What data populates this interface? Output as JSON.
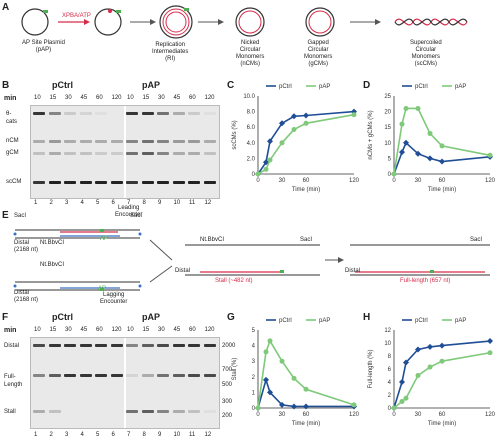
{
  "panels": {
    "A": "A",
    "B": "B",
    "C": "C",
    "D": "D",
    "E": "E",
    "F": "F",
    "G": "G",
    "H": "H"
  },
  "A": {
    "s1": [
      "AP Site Plasmid",
      "(pAP)"
    ],
    "arrow": "XPBA/ATP",
    "s3": [
      "Replication",
      "Intermediates",
      "(RI)"
    ],
    "s4": [
      "Nicked",
      "Circular",
      "Monomers",
      "(nCMs)"
    ],
    "s5": [
      "Gapped",
      "Circular",
      "Monomers",
      "(gCMs)"
    ],
    "s6": [
      "Supercoiled",
      "Circular",
      "Monomers",
      "(scCMs)"
    ]
  },
  "B": {
    "headers": [
      "pCtrl",
      "pAP"
    ],
    "min": "min",
    "times": [
      "10",
      "15",
      "30",
      "45",
      "60",
      "120",
      "10",
      "15",
      "30",
      "45",
      "60",
      "120"
    ],
    "lanes": [
      "1",
      "2",
      "3",
      "4",
      "5",
      "6",
      "7",
      "8",
      "9",
      "10",
      "11",
      "12"
    ],
    "rows": [
      "θ-",
      "cats",
      "nCM",
      "gCM",
      "scCM"
    ]
  },
  "C": {
    "ylabel": "scCMs (%)",
    "xlabel": "Time (min)",
    "yticks": [
      "0",
      "2.0",
      "4.0",
      "6.0",
      "8.0",
      "10.0"
    ],
    "xticks": [
      "0",
      "30",
      "60",
      "120"
    ],
    "legend": [
      "pCtrl",
      "pAP"
    ]
  },
  "D": {
    "ylabel": "nCMs + gCMs (%)",
    "xlabel": "Time (min)",
    "yticks": [
      "0",
      "5",
      "10",
      "15",
      "20",
      "25"
    ],
    "xticks": [
      "0",
      "30",
      "60",
      "120"
    ],
    "legend": [
      "pCtrl",
      "pAP"
    ]
  },
  "E": {
    "sac": "SacI",
    "nt": "Nt.BbvCI",
    "distal": "Distal",
    "len": "(2168 nt)",
    "lead": [
      "Leading",
      "Encounter"
    ],
    "lag": [
      "Lagging",
      "Encounter"
    ],
    "ap": "AP",
    "stall": "Stall (~482 nt)",
    "full": "Full-length (657 nt)"
  },
  "F": {
    "headers": [
      "pCtrl",
      "pAP"
    ],
    "min": "min",
    "times": [
      "10",
      "15",
      "30",
      "45",
      "60",
      "120",
      "10",
      "15",
      "30",
      "45",
      "60",
      "120"
    ],
    "lanes": [
      "1",
      "2",
      "3",
      "4",
      "5",
      "6",
      "7",
      "8",
      "9",
      "10",
      "11",
      "12"
    ],
    "rows": [
      "Distal",
      "Full-",
      "Length",
      "Stall"
    ],
    "markers": [
      "2000",
      "700",
      "500",
      "300",
      "200"
    ]
  },
  "G": {
    "ylabel": "Stall (%)",
    "xlabel": "Time (min)",
    "yticks": [
      "0",
      "1",
      "2",
      "3",
      "4",
      "5"
    ],
    "xticks": [
      "0",
      "30",
      "60",
      "120"
    ],
    "legend": [
      "pCtrl",
      "pAP"
    ]
  },
  "H": {
    "ylabel": "Full-length (%)",
    "xlabel": "Time (min)",
    "yticks": [
      "0",
      "2",
      "4",
      "6",
      "8",
      "10",
      "12"
    ],
    "xticks": [
      "0",
      "30",
      "60",
      "120"
    ],
    "legend": [
      "pCtrl",
      "pAP"
    ]
  },
  "colors": {
    "ctrl": "#1f4e96",
    "ap": "#7fc97a",
    "red": "#d62c4a",
    "blue": "#3a6fc4",
    "green": "#4caf50"
  },
  "chart_data": [
    {
      "type": "line",
      "panel": "C",
      "x": [
        0,
        10,
        15,
        30,
        45,
        60,
        120
      ],
      "xlim": [
        0,
        120
      ],
      "ylim": [
        0,
        10
      ],
      "series": [
        {
          "name": "pCtrl",
          "values": [
            0,
            1.5,
            4.2,
            6.5,
            7.4,
            7.5,
            8.0
          ]
        },
        {
          "name": "pAP",
          "values": [
            0,
            0.6,
            1.8,
            4.0,
            5.7,
            6.5,
            7.6
          ]
        }
      ]
    },
    {
      "type": "line",
      "panel": "D",
      "x": [
        0,
        10,
        15,
        30,
        45,
        60,
        120
      ],
      "xlim": [
        0,
        120
      ],
      "ylim": [
        0,
        25
      ],
      "series": [
        {
          "name": "pCtrl",
          "values": [
            0,
            7,
            10,
            6.5,
            5,
            4,
            5.5
          ]
        },
        {
          "name": "pAP",
          "values": [
            0,
            16,
            21,
            21,
            13,
            9,
            6
          ]
        }
      ]
    },
    {
      "type": "line",
      "panel": "G",
      "x": [
        0,
        10,
        15,
        30,
        45,
        60,
        120
      ],
      "xlim": [
        0,
        120
      ],
      "ylim": [
        0,
        5
      ],
      "series": [
        {
          "name": "pCtrl",
          "values": [
            0,
            1.8,
            1.0,
            0.2,
            0.1,
            0.1,
            0.1
          ]
        },
        {
          "name": "pAP",
          "values": [
            0,
            3.6,
            4.3,
            3.0,
            1.9,
            1.2,
            0.2
          ]
        }
      ]
    },
    {
      "type": "line",
      "panel": "H",
      "x": [
        0,
        10,
        15,
        30,
        45,
        60,
        120
      ],
      "xlim": [
        0,
        120
      ],
      "ylim": [
        0,
        12
      ],
      "series": [
        {
          "name": "pCtrl",
          "values": [
            0,
            4,
            7,
            9,
            9.4,
            9.6,
            10.3
          ]
        },
        {
          "name": "pAP",
          "values": [
            0,
            1,
            1.5,
            5,
            6.3,
            7.2,
            8.5
          ]
        }
      ]
    }
  ]
}
